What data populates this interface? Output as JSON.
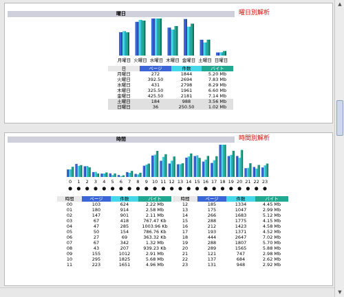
{
  "weekday": {
    "header_label": "曜日",
    "section_title": "曜日別解析",
    "colors": {
      "page": "#3a66d8",
      "count": "#44d8e8",
      "byte": "#20a890"
    },
    "table_headers": {
      "item": "日",
      "page": "ページ",
      "count": "件数",
      "byte": "バイト"
    },
    "rows": [
      {
        "label": "月曜日",
        "page": "272",
        "count": "1844",
        "byte": "5.20 Mb"
      },
      {
        "label": "火曜日",
        "page": "392.50",
        "count": "2694",
        "byte": "7.83 Mb"
      },
      {
        "label": "水曜日",
        "page": "431",
        "count": "2798",
        "byte": "8.29 Mb"
      },
      {
        "label": "木曜日",
        "page": "325.50",
        "count": "1961",
        "byte": "6.60 Mb"
      },
      {
        "label": "金曜日",
        "page": "425.50",
        "count": "2181",
        "byte": "7.14 Mb"
      },
      {
        "label": "土曜日",
        "page": "184",
        "count": "988",
        "byte": "3.56 Mb"
      },
      {
        "label": "日曜日",
        "page": "36",
        "count": "250.50",
        "byte": "1.02 Mb"
      }
    ],
    "chart_data": {
      "type": "bar",
      "categories": [
        "月曜日",
        "火曜日",
        "水曜日",
        "木曜日",
        "金曜日",
        "土曜日",
        "日曜日"
      ],
      "series": [
        {
          "values": [
            272,
            392.5,
            431,
            325.5,
            425.5,
            184,
            36
          ]
        },
        {
          "values": [
            1844,
            2694,
            2798,
            1961,
            2181,
            988,
            250.5
          ]
        },
        {
          "values": [
            5.2,
            7.83,
            8.29,
            6.6,
            7.14,
            3.56,
            1.02
          ]
        }
      ]
    }
  },
  "hourly": {
    "header_label": "時間",
    "section_title": "時間別解析",
    "table_headers": {
      "item": "時間",
      "page": "ページ",
      "count": "件数",
      "byte": "バイト"
    },
    "rows_left": [
      {
        "label": "00",
        "page": "103",
        "count": "624",
        "byte": "2.22 Mb"
      },
      {
        "label": "01",
        "page": "180",
        "count": "914",
        "byte": "2.58 Mb"
      },
      {
        "label": "02",
        "page": "147",
        "count": "901",
        "byte": "2.11 Mb"
      },
      {
        "label": "03",
        "page": "67",
        "count": "418",
        "byte": "767.47 Kb"
      },
      {
        "label": "04",
        "page": "47",
        "count": "285",
        "byte": "1003.96 Kb"
      },
      {
        "label": "05",
        "page": "50",
        "count": "154",
        "byte": "786.76 Kb"
      },
      {
        "label": "06",
        "page": "27",
        "count": "69",
        "byte": "363.32 Kb"
      },
      {
        "label": "07",
        "page": "67",
        "count": "342",
        "byte": "1.32 Mb"
      },
      {
        "label": "08",
        "page": "43",
        "count": "207",
        "byte": "939.23 Kb"
      },
      {
        "label": "09",
        "page": "155",
        "count": "1012",
        "byte": "2.91 Mb"
      },
      {
        "label": "10",
        "page": "295",
        "count": "1825",
        "byte": "5.68 Mb"
      },
      {
        "label": "11",
        "page": "223",
        "count": "1651",
        "byte": "4.96 Mb"
      }
    ],
    "rows_right": [
      {
        "label": "12",
        "page": "185",
        "count": "1334",
        "byte": "4.45 Mb"
      },
      {
        "label": "13",
        "page": "175",
        "count": "1047",
        "byte": "2.99 Mb"
      },
      {
        "label": "14",
        "page": "266",
        "count": "1683",
        "byte": "5.12 Mb"
      },
      {
        "label": "15",
        "page": "288",
        "count": "1775",
        "byte": "4.15 Mb"
      },
      {
        "label": "16",
        "page": "212",
        "count": "1423",
        "byte": "4.58 Mb"
      },
      {
        "label": "17",
        "page": "193",
        "count": "1371",
        "byte": "4.52 Mb"
      },
      {
        "label": "18",
        "page": "444",
        "count": "2647",
        "byte": "7.02 Mb"
      },
      {
        "label": "19",
        "page": "288",
        "count": "1807",
        "byte": "5.70 Mb"
      },
      {
        "label": "20",
        "page": "289",
        "count": "1565",
        "byte": "5.88 Mb"
      },
      {
        "label": "21",
        "page": "121",
        "count": "747",
        "byte": "2.98 Mb"
      },
      {
        "label": "22",
        "page": "137",
        "count": "684",
        "byte": "2.62 Mb"
      },
      {
        "label": "23",
        "page": "131",
        "page_dummy": null,
        "count": "948",
        "byte": "2.92 Mb"
      }
    ],
    "chart_data": {
      "type": "bar",
      "categories": [
        "0",
        "1",
        "2",
        "3",
        "4",
        "5",
        "6",
        "7",
        "8",
        "9",
        "10",
        "11",
        "12",
        "13",
        "14",
        "15",
        "16",
        "17",
        "18",
        "19",
        "20",
        "21",
        "22",
        "23"
      ],
      "series": [
        {
          "values": [
            103,
            180,
            147,
            67,
            47,
            50,
            27,
            67,
            43,
            155,
            295,
            223,
            185,
            175,
            266,
            288,
            212,
            193,
            444,
            288,
            289,
            121,
            137,
            131
          ]
        },
        {
          "values": [
            624,
            914,
            901,
            418,
            285,
            154,
            69,
            342,
            207,
            1012,
            1825,
            1651,
            1334,
            1047,
            1683,
            1775,
            1423,
            1371,
            2647,
            1807,
            1565,
            747,
            684,
            948
          ]
        },
        {
          "values": [
            2.22,
            2.58,
            2.11,
            0.767,
            0.98,
            0.768,
            0.355,
            1.32,
            0.917,
            2.91,
            5.68,
            4.96,
            4.45,
            2.99,
            5.12,
            4.15,
            4.58,
            4.52,
            7.02,
            5.7,
            5.88,
            2.98,
            2.62,
            2.92
          ]
        }
      ]
    }
  }
}
